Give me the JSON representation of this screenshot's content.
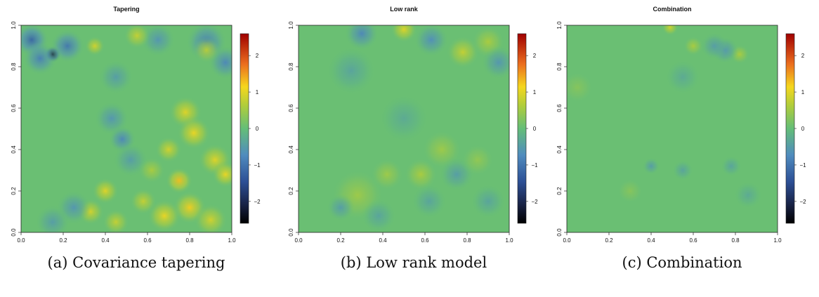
{
  "chart_data": [
    {
      "type": "heatmap",
      "title": "Tapering",
      "caption_label": "(a)",
      "caption_text": "Covariance tapering",
      "xlim": [
        0,
        1
      ],
      "ylim": [
        0,
        1
      ],
      "x_ticks": [
        "0.0",
        "0.2",
        "0.4",
        "0.6",
        "0.8",
        "1.0"
      ],
      "y_ticks": [
        "0.0",
        "0.2",
        "0.4",
        "0.6",
        "0.8",
        "1.0"
      ],
      "colorbar": {
        "range": [
          -2.6,
          2.6
        ],
        "ticks": [
          "2",
          "1",
          "0",
          "−1",
          "−2"
        ]
      },
      "features": [
        {
          "x": 0.15,
          "y": 0.86,
          "v": -2.2,
          "s": 0.025
        },
        {
          "x": 0.05,
          "y": 0.93,
          "v": -1.2,
          "s": 0.05
        },
        {
          "x": 0.22,
          "y": 0.9,
          "v": -1.0,
          "s": 0.05
        },
        {
          "x": 0.09,
          "y": 0.84,
          "v": -0.9,
          "s": 0.05
        },
        {
          "x": 0.88,
          "y": 0.92,
          "v": -0.9,
          "s": 0.06
        },
        {
          "x": 0.97,
          "y": 0.82,
          "v": -0.8,
          "s": 0.05
        },
        {
          "x": 0.65,
          "y": 0.93,
          "v": -0.6,
          "s": 0.05
        },
        {
          "x": 0.45,
          "y": 0.75,
          "v": -0.5,
          "s": 0.05
        },
        {
          "x": 0.35,
          "y": 0.9,
          "v": 0.9,
          "s": 0.03
        },
        {
          "x": 0.55,
          "y": 0.95,
          "v": 0.8,
          "s": 0.04
        },
        {
          "x": 0.88,
          "y": 0.88,
          "v": 0.7,
          "s": 0.04
        },
        {
          "x": 0.48,
          "y": 0.45,
          "v": -0.8,
          "s": 0.04
        },
        {
          "x": 0.43,
          "y": 0.55,
          "v": -0.6,
          "s": 0.05
        },
        {
          "x": 0.52,
          "y": 0.35,
          "v": -0.5,
          "s": 0.05
        },
        {
          "x": 0.78,
          "y": 0.58,
          "v": 1.0,
          "s": 0.05
        },
        {
          "x": 0.82,
          "y": 0.48,
          "v": 1.1,
          "s": 0.05
        },
        {
          "x": 0.7,
          "y": 0.4,
          "v": 0.9,
          "s": 0.04
        },
        {
          "x": 0.92,
          "y": 0.35,
          "v": 1.0,
          "s": 0.05
        },
        {
          "x": 0.97,
          "y": 0.28,
          "v": 1.1,
          "s": 0.04
        },
        {
          "x": 0.75,
          "y": 0.25,
          "v": 1.3,
          "s": 0.04
        },
        {
          "x": 0.8,
          "y": 0.12,
          "v": 1.2,
          "s": 0.05
        },
        {
          "x": 0.68,
          "y": 0.08,
          "v": 1.1,
          "s": 0.05
        },
        {
          "x": 0.9,
          "y": 0.06,
          "v": 0.9,
          "s": 0.05
        },
        {
          "x": 0.58,
          "y": 0.15,
          "v": 0.8,
          "s": 0.04
        },
        {
          "x": 0.4,
          "y": 0.2,
          "v": 1.0,
          "s": 0.04
        },
        {
          "x": 0.33,
          "y": 0.1,
          "v": 0.9,
          "s": 0.04
        },
        {
          "x": 0.45,
          "y": 0.05,
          "v": 0.8,
          "s": 0.04
        },
        {
          "x": 0.25,
          "y": 0.12,
          "v": -0.6,
          "s": 0.05
        },
        {
          "x": 0.15,
          "y": 0.05,
          "v": -0.5,
          "s": 0.05
        },
        {
          "x": 0.62,
          "y": 0.3,
          "v": 0.6,
          "s": 0.04
        }
      ]
    },
    {
      "type": "heatmap",
      "title": "Low rank",
      "caption_label": "(b)",
      "caption_text": "Low rank model",
      "xlim": [
        0,
        1
      ],
      "ylim": [
        0,
        1
      ],
      "x_ticks": [
        "0.0",
        "0.2",
        "0.4",
        "0.6",
        "0.8",
        "1.0"
      ],
      "y_ticks": [
        "0.0",
        "0.2",
        "0.4",
        "0.6",
        "0.8",
        "1.0"
      ],
      "colorbar": {
        "range": [
          -2.6,
          2.6
        ],
        "ticks": [
          "2",
          "1",
          "0",
          "−1",
          "−2"
        ]
      },
      "features": [
        {
          "x": 0.5,
          "y": 0.98,
          "v": 1.0,
          "s": 0.04
        },
        {
          "x": 0.78,
          "y": 0.87,
          "v": 0.8,
          "s": 0.05
        },
        {
          "x": 0.9,
          "y": 0.92,
          "v": 0.6,
          "s": 0.05
        },
        {
          "x": 0.3,
          "y": 0.96,
          "v": -0.8,
          "s": 0.05
        },
        {
          "x": 0.63,
          "y": 0.93,
          "v": -0.7,
          "s": 0.05
        },
        {
          "x": 0.95,
          "y": 0.82,
          "v": -0.6,
          "s": 0.05
        },
        {
          "x": 0.25,
          "y": 0.78,
          "v": -0.4,
          "s": 0.07
        },
        {
          "x": 0.28,
          "y": 0.18,
          "v": 0.5,
          "s": 0.08
        },
        {
          "x": 0.2,
          "y": 0.12,
          "v": -0.5,
          "s": 0.04
        },
        {
          "x": 0.38,
          "y": 0.08,
          "v": -0.4,
          "s": 0.05
        },
        {
          "x": 0.42,
          "y": 0.28,
          "v": 0.5,
          "s": 0.05
        },
        {
          "x": 0.58,
          "y": 0.28,
          "v": 0.6,
          "s": 0.05
        },
        {
          "x": 0.68,
          "y": 0.4,
          "v": 0.5,
          "s": 0.06
        },
        {
          "x": 0.62,
          "y": 0.15,
          "v": -0.4,
          "s": 0.05
        },
        {
          "x": 0.75,
          "y": 0.28,
          "v": -0.5,
          "s": 0.05
        },
        {
          "x": 0.85,
          "y": 0.35,
          "v": 0.4,
          "s": 0.05
        },
        {
          "x": 0.9,
          "y": 0.15,
          "v": -0.4,
          "s": 0.05
        },
        {
          "x": 0.5,
          "y": 0.55,
          "v": -0.3,
          "s": 0.07
        }
      ]
    },
    {
      "type": "heatmap",
      "title": "Combination",
      "caption_label": "(c)",
      "caption_text": "Combination",
      "xlim": [
        0,
        1
      ],
      "ylim": [
        0,
        1
      ],
      "x_ticks": [
        "0.0",
        "0.2",
        "0.4",
        "0.6",
        "0.8",
        "1.0"
      ],
      "y_ticks": [
        "0.0",
        "0.2",
        "0.4",
        "0.6",
        "0.8",
        "1.0"
      ],
      "colorbar": {
        "range": [
          -2.6,
          2.6
        ],
        "ticks": [
          "2",
          "1",
          "0",
          "−1",
          "−2"
        ]
      },
      "features": [
        {
          "x": 0.49,
          "y": 0.99,
          "v": 0.9,
          "s": 0.025
        },
        {
          "x": 0.6,
          "y": 0.9,
          "v": 0.6,
          "s": 0.03
        },
        {
          "x": 0.82,
          "y": 0.86,
          "v": 0.6,
          "s": 0.03
        },
        {
          "x": 0.75,
          "y": 0.88,
          "v": -0.6,
          "s": 0.04
        },
        {
          "x": 0.7,
          "y": 0.9,
          "v": -0.5,
          "s": 0.04
        },
        {
          "x": 0.55,
          "y": 0.75,
          "v": -0.3,
          "s": 0.05
        },
        {
          "x": 0.4,
          "y": 0.32,
          "v": -0.5,
          "s": 0.025
        },
        {
          "x": 0.55,
          "y": 0.3,
          "v": -0.4,
          "s": 0.03
        },
        {
          "x": 0.78,
          "y": 0.32,
          "v": -0.4,
          "s": 0.03
        },
        {
          "x": 0.86,
          "y": 0.18,
          "v": -0.3,
          "s": 0.04
        },
        {
          "x": 0.3,
          "y": 0.2,
          "v": 0.3,
          "s": 0.04
        },
        {
          "x": 0.05,
          "y": 0.7,
          "v": 0.3,
          "s": 0.05
        }
      ]
    }
  ]
}
